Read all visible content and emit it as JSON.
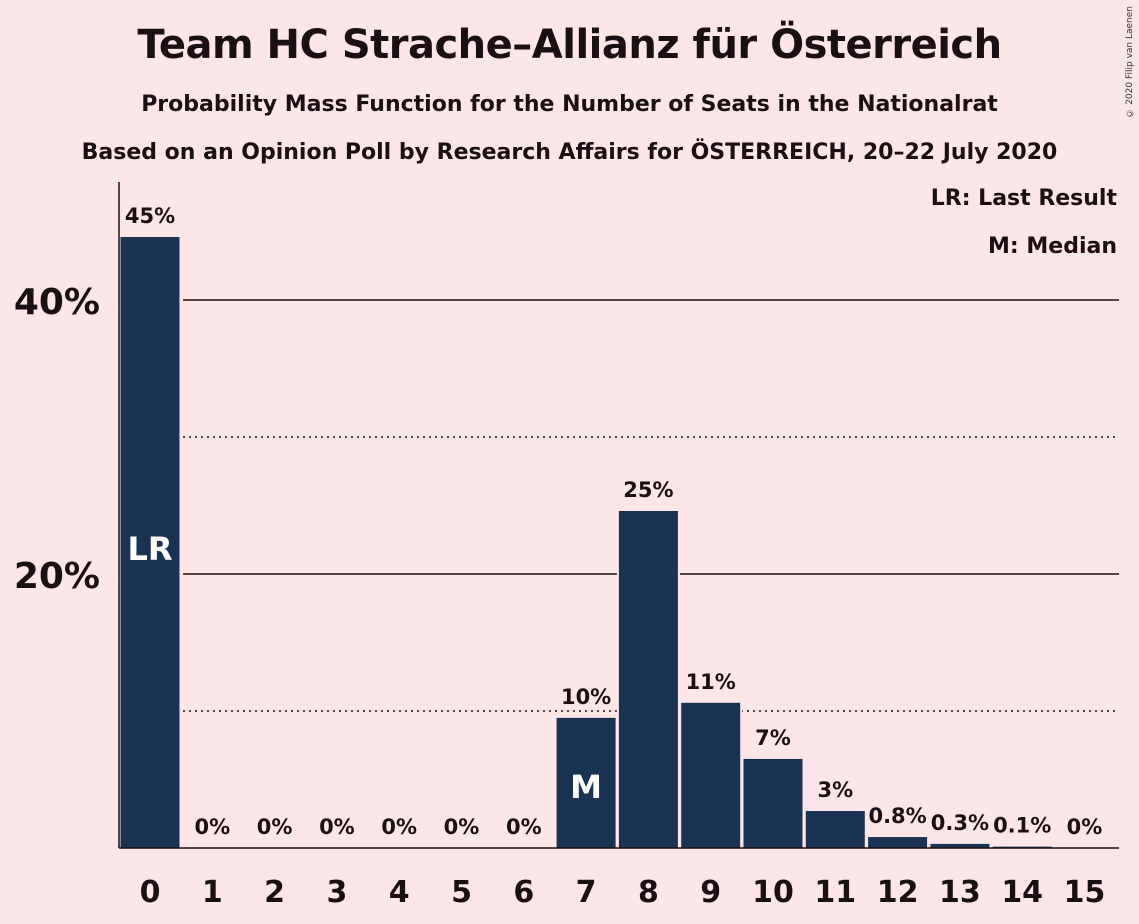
{
  "title": "Team HC Strache–Allianz für Österreich",
  "subtitle1": "Probability Mass Function for the Number of Seats in the Nationalrat",
  "subtitle2": "Based on an Opinion Poll by Research Affairs for ÖSTERREICH, 20–22 July 2020",
  "copyright": "© 2020 Filip van Laenen",
  "legend": {
    "lr": "LR: Last Result",
    "m": "M: Median"
  },
  "colors": {
    "bar": "#1b3352",
    "background": "#fde6e8",
    "text": "#1a0f12"
  },
  "chart_data": {
    "type": "bar",
    "categories": [
      "0",
      "1",
      "2",
      "3",
      "4",
      "5",
      "6",
      "7",
      "8",
      "9",
      "10",
      "11",
      "12",
      "13",
      "14",
      "15"
    ],
    "values": [
      44.6,
      0,
      0,
      0,
      0,
      0,
      0,
      9.5,
      24.6,
      10.6,
      6.5,
      2.7,
      0.8,
      0.3,
      0.1,
      0
    ],
    "labels": [
      "45%",
      "0%",
      "0%",
      "0%",
      "0%",
      "0%",
      "0%",
      "10%",
      "25%",
      "11%",
      "7%",
      "3%",
      "0.8%",
      "0.3%",
      "0.1%",
      "0%"
    ],
    "yticks": [
      {
        "value": 20,
        "label": "20%"
      },
      {
        "value": 40,
        "label": "40%"
      }
    ],
    "minor_gridlines": [
      10,
      30
    ],
    "ylim": [
      0,
      48.5
    ],
    "markers": [
      {
        "category": "0",
        "text": "LR"
      },
      {
        "category": "7",
        "text": "M"
      }
    ],
    "legend_placement": "top-right"
  }
}
